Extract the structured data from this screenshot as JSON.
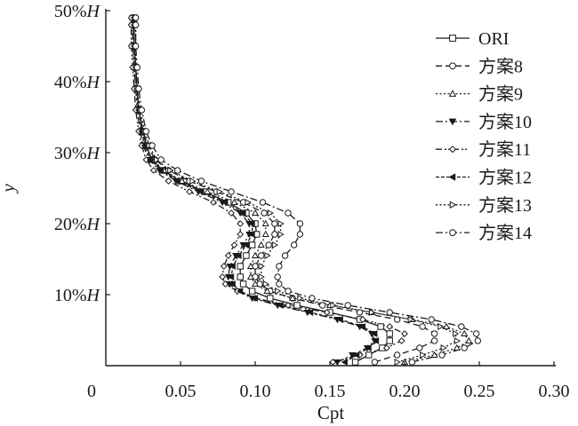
{
  "chart_data": {
    "type": "line",
    "xlabel": "Cpt",
    "ylabel": "y",
    "xlim": [
      0,
      0.3
    ],
    "ylim": [
      0,
      50
    ],
    "x_ticks": [
      0,
      0.05,
      0.1,
      0.15,
      0.2,
      0.25,
      0.3
    ],
    "x_tick_labels": [
      "0",
      "0.05",
      "0.10",
      "0.15",
      "0.20",
      "0.25",
      "0.30"
    ],
    "y_ticks": [
      10,
      20,
      30,
      40,
      50
    ],
    "y_tick_labels": [
      "10%H",
      "20%H",
      "30%H",
      "40%H",
      "50%H"
    ],
    "grid": false,
    "legend_position": "top-right",
    "y": [
      0.5,
      1.5,
      2.5,
      3.5,
      4.5,
      5.5,
      6.5,
      7.5,
      8.5,
      9.5,
      10.5,
      11.5,
      12.5,
      14,
      15.5,
      17,
      18.5,
      20,
      21.5,
      23,
      24.5,
      26,
      27.5,
      29,
      31,
      33,
      36,
      39,
      42,
      45,
      48,
      49
    ],
    "series": [
      {
        "name": "ORI",
        "line": "solid",
        "marker": "square-open",
        "x": [
          0.167,
          0.176,
          0.185,
          0.19,
          0.19,
          0.184,
          0.17,
          0.15,
          0.128,
          0.11,
          0.098,
          0.092,
          0.09,
          0.09,
          0.094,
          0.098,
          0.101,
          0.1,
          0.094,
          0.082,
          0.066,
          0.05,
          0.038,
          0.031,
          0.027,
          0.025,
          0.022,
          0.021,
          0.02,
          0.019,
          0.019,
          0.019
        ]
      },
      {
        "name": "方案8",
        "line": "dashed",
        "marker": "circle-open",
        "x": [
          0.18,
          0.195,
          0.21,
          0.22,
          0.22,
          0.212,
          0.195,
          0.17,
          0.145,
          0.125,
          0.11,
          0.103,
          0.1,
          0.1,
          0.104,
          0.109,
          0.113,
          0.113,
          0.106,
          0.092,
          0.074,
          0.056,
          0.042,
          0.033,
          0.028,
          0.025,
          0.022,
          0.021,
          0.02,
          0.019,
          0.019,
          0.019
        ]
      },
      {
        "name": "方案9",
        "line": "dotted",
        "marker": "triangle-up-open",
        "x": [
          0.2,
          0.22,
          0.235,
          0.243,
          0.24,
          0.228,
          0.205,
          0.178,
          0.15,
          0.125,
          0.108,
          0.1,
          0.097,
          0.097,
          0.1,
          0.104,
          0.107,
          0.107,
          0.1,
          0.086,
          0.068,
          0.051,
          0.039,
          0.031,
          0.027,
          0.024,
          0.022,
          0.02,
          0.019,
          0.018,
          0.018,
          0.018
        ]
      },
      {
        "name": "方案10",
        "line": "dash-dot",
        "marker": "triangle-down-filled",
        "x": [
          0.155,
          0.165,
          0.175,
          0.18,
          0.178,
          0.17,
          0.155,
          0.135,
          0.115,
          0.098,
          0.088,
          0.083,
          0.082,
          0.083,
          0.087,
          0.092,
          0.096,
          0.096,
          0.09,
          0.078,
          0.062,
          0.047,
          0.036,
          0.029,
          0.025,
          0.023,
          0.021,
          0.02,
          0.019,
          0.018,
          0.018,
          0.018
        ]
      },
      {
        "name": "方案11",
        "line": "dash-dot-dot",
        "marker": "diamond-open",
        "x": [
          0.152,
          0.17,
          0.188,
          0.198,
          0.2,
          0.19,
          0.172,
          0.148,
          0.122,
          0.1,
          0.088,
          0.08,
          0.078,
          0.079,
          0.082,
          0.086,
          0.09,
          0.09,
          0.084,
          0.072,
          0.056,
          0.042,
          0.032,
          0.027,
          0.024,
          0.022,
          0.02,
          0.019,
          0.018,
          0.017,
          0.017,
          0.017
        ]
      },
      {
        "name": "方案12",
        "line": "dense-dash",
        "marker": "triangle-left-filled",
        "x": [
          0.16,
          0.168,
          0.176,
          0.181,
          0.18,
          0.172,
          0.157,
          0.137,
          0.117,
          0.1,
          0.09,
          0.085,
          0.084,
          0.085,
          0.089,
          0.094,
          0.098,
          0.098,
          0.092,
          0.08,
          0.064,
          0.048,
          0.037,
          0.03,
          0.026,
          0.024,
          0.022,
          0.021,
          0.02,
          0.019,
          0.019,
          0.019
        ]
      },
      {
        "name": "方案13",
        "line": "dotted",
        "marker": "triangle-right-open",
        "x": [
          0.195,
          0.212,
          0.226,
          0.235,
          0.234,
          0.224,
          0.204,
          0.178,
          0.152,
          0.13,
          0.115,
          0.107,
          0.104,
          0.104,
          0.108,
          0.113,
          0.117,
          0.117,
          0.11,
          0.095,
          0.076,
          0.058,
          0.043,
          0.034,
          0.029,
          0.026,
          0.023,
          0.021,
          0.02,
          0.02,
          0.02,
          0.02
        ]
      },
      {
        "name": "方案14",
        "line": "dash-dot",
        "marker": "circle-open",
        "x": [
          0.205,
          0.225,
          0.24,
          0.249,
          0.248,
          0.238,
          0.218,
          0.19,
          0.162,
          0.138,
          0.122,
          0.116,
          0.115,
          0.116,
          0.12,
          0.126,
          0.13,
          0.13,
          0.122,
          0.105,
          0.084,
          0.064,
          0.048,
          0.037,
          0.031,
          0.027,
          0.024,
          0.022,
          0.021,
          0.02,
          0.02,
          0.02
        ]
      }
    ],
    "colors": {
      "ink": "#1a1a1a",
      "background": "#ffffff"
    }
  }
}
